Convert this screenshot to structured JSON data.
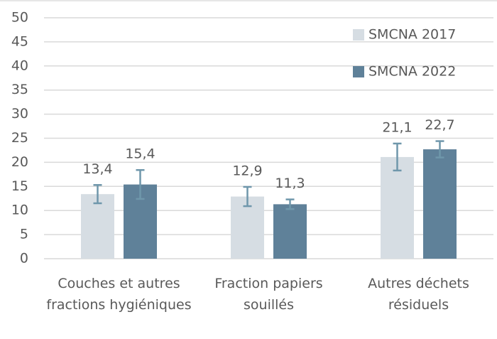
{
  "chart_data": {
    "type": "bar",
    "categories": [
      "Couches et autres fractions hygiéniques",
      "Fraction papiers souillés",
      "Autres déchets résiduels"
    ],
    "series": [
      {
        "name": "SMCNA 2017",
        "color": "#d6dde3",
        "values": [
          13.4,
          12.9,
          21.1
        ],
        "value_labels": [
          "13,4",
          "12,9",
          "21,1"
        ],
        "errors": [
          1.9,
          2.0,
          2.8
        ]
      },
      {
        "name": "SMCNA 2022",
        "color": "#5f8199",
        "values": [
          15.4,
          11.3,
          22.7
        ],
        "value_labels": [
          "15,4",
          "11,3",
          "22,7"
        ],
        "errors": [
          3.0,
          1.0,
          1.7
        ]
      }
    ],
    "error_color": "#6f97ab",
    "ylim": [
      0,
      50
    ],
    "yticks": [
      0,
      5,
      10,
      15,
      20,
      25,
      30,
      35,
      40,
      45,
      50
    ],
    "grid": true,
    "legend": "upper right"
  }
}
